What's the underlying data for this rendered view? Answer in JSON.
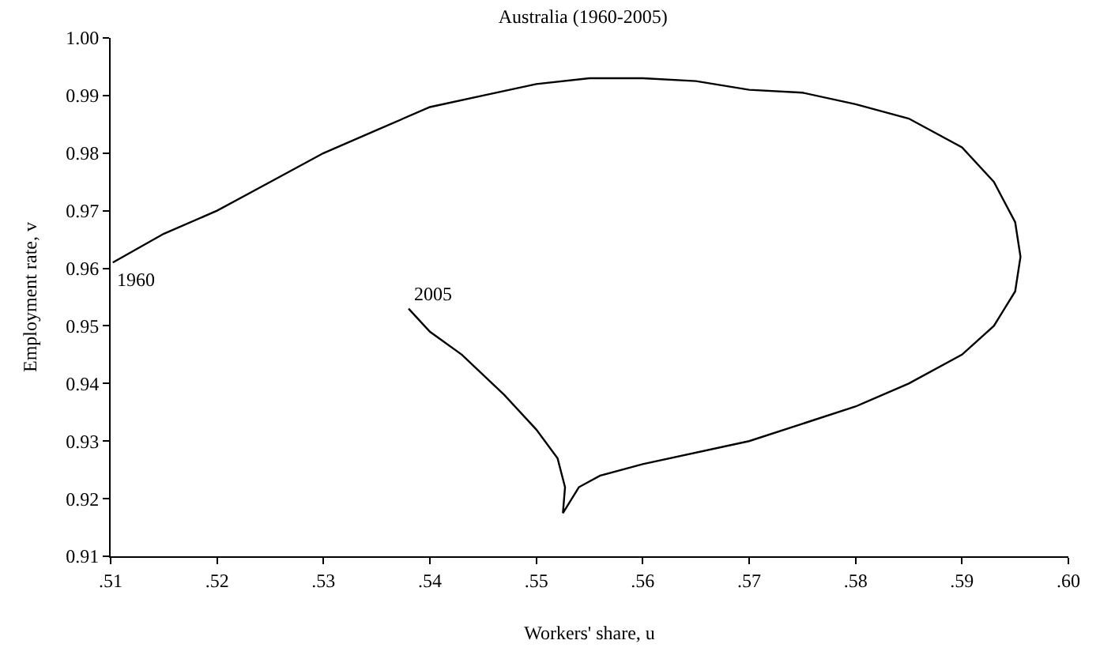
{
  "chart_data": {
    "type": "line",
    "title": "Australia (1960-2005)",
    "xlabel": "Workers' share, u",
    "ylabel": "Employment rate, v",
    "x": [
      0.5102,
      0.515,
      0.52,
      0.525,
      0.53,
      0.535,
      0.54,
      0.545,
      0.55,
      0.555,
      0.56,
      0.565,
      0.57,
      0.575,
      0.58,
      0.585,
      0.59,
      0.593,
      0.595,
      0.5955,
      0.595,
      0.593,
      0.59,
      0.585,
      0.58,
      0.57,
      0.56,
      0.556,
      0.554,
      0.5525,
      0.5527,
      0.552,
      0.55,
      0.547,
      0.543,
      0.54,
      0.538
    ],
    "series": [
      {
        "color": "#000000",
        "values": [
          0.961,
          0.966,
          0.97,
          0.975,
          0.98,
          0.984,
          0.988,
          0.99,
          0.992,
          0.993,
          0.993,
          0.9925,
          0.991,
          0.9905,
          0.9885,
          0.986,
          0.981,
          0.975,
          0.968,
          0.962,
          0.956,
          0.95,
          0.945,
          0.94,
          0.936,
          0.93,
          0.926,
          0.924,
          0.922,
          0.9175,
          0.922,
          0.927,
          0.932,
          0.938,
          0.945,
          0.949,
          0.953
        ]
      }
    ],
    "annotations": [
      {
        "text": "1960",
        "x": 0.5102,
        "y": 0.961
      },
      {
        "text": "2005",
        "x": 0.538,
        "y": 0.953
      }
    ],
    "xlim": [
      0.51,
      0.6
    ],
    "xticks": [
      {
        "value": 0.51,
        "label": ".51"
      },
      {
        "value": 0.52,
        "label": ".52"
      },
      {
        "value": 0.53,
        "label": ".53"
      },
      {
        "value": 0.54,
        "label": ".54"
      },
      {
        "value": 0.55,
        "label": ".55"
      },
      {
        "value": 0.56,
        "label": ".56"
      },
      {
        "value": 0.57,
        "label": ".57"
      },
      {
        "value": 0.58,
        "label": ".58"
      },
      {
        "value": 0.59,
        "label": ".59"
      },
      {
        "value": 0.6,
        "label": ".60"
      }
    ],
    "ylim": [
      0.91,
      1.0
    ],
    "yticks": [
      {
        "value": 0.91,
        "label": "0.91"
      },
      {
        "value": 0.92,
        "label": "0.92"
      },
      {
        "value": 0.93,
        "label": "0.93"
      },
      {
        "value": 0.94,
        "label": "0.94"
      },
      {
        "value": 0.95,
        "label": "0.95"
      },
      {
        "value": 0.96,
        "label": "0.96"
      },
      {
        "value": 0.97,
        "label": "0.97"
      },
      {
        "value": 0.98,
        "label": "0.98"
      },
      {
        "value": 0.99,
        "label": "0.99"
      },
      {
        "value": 1.0,
        "label": "1.00"
      }
    ],
    "marker": "none",
    "line_style": "solid"
  }
}
